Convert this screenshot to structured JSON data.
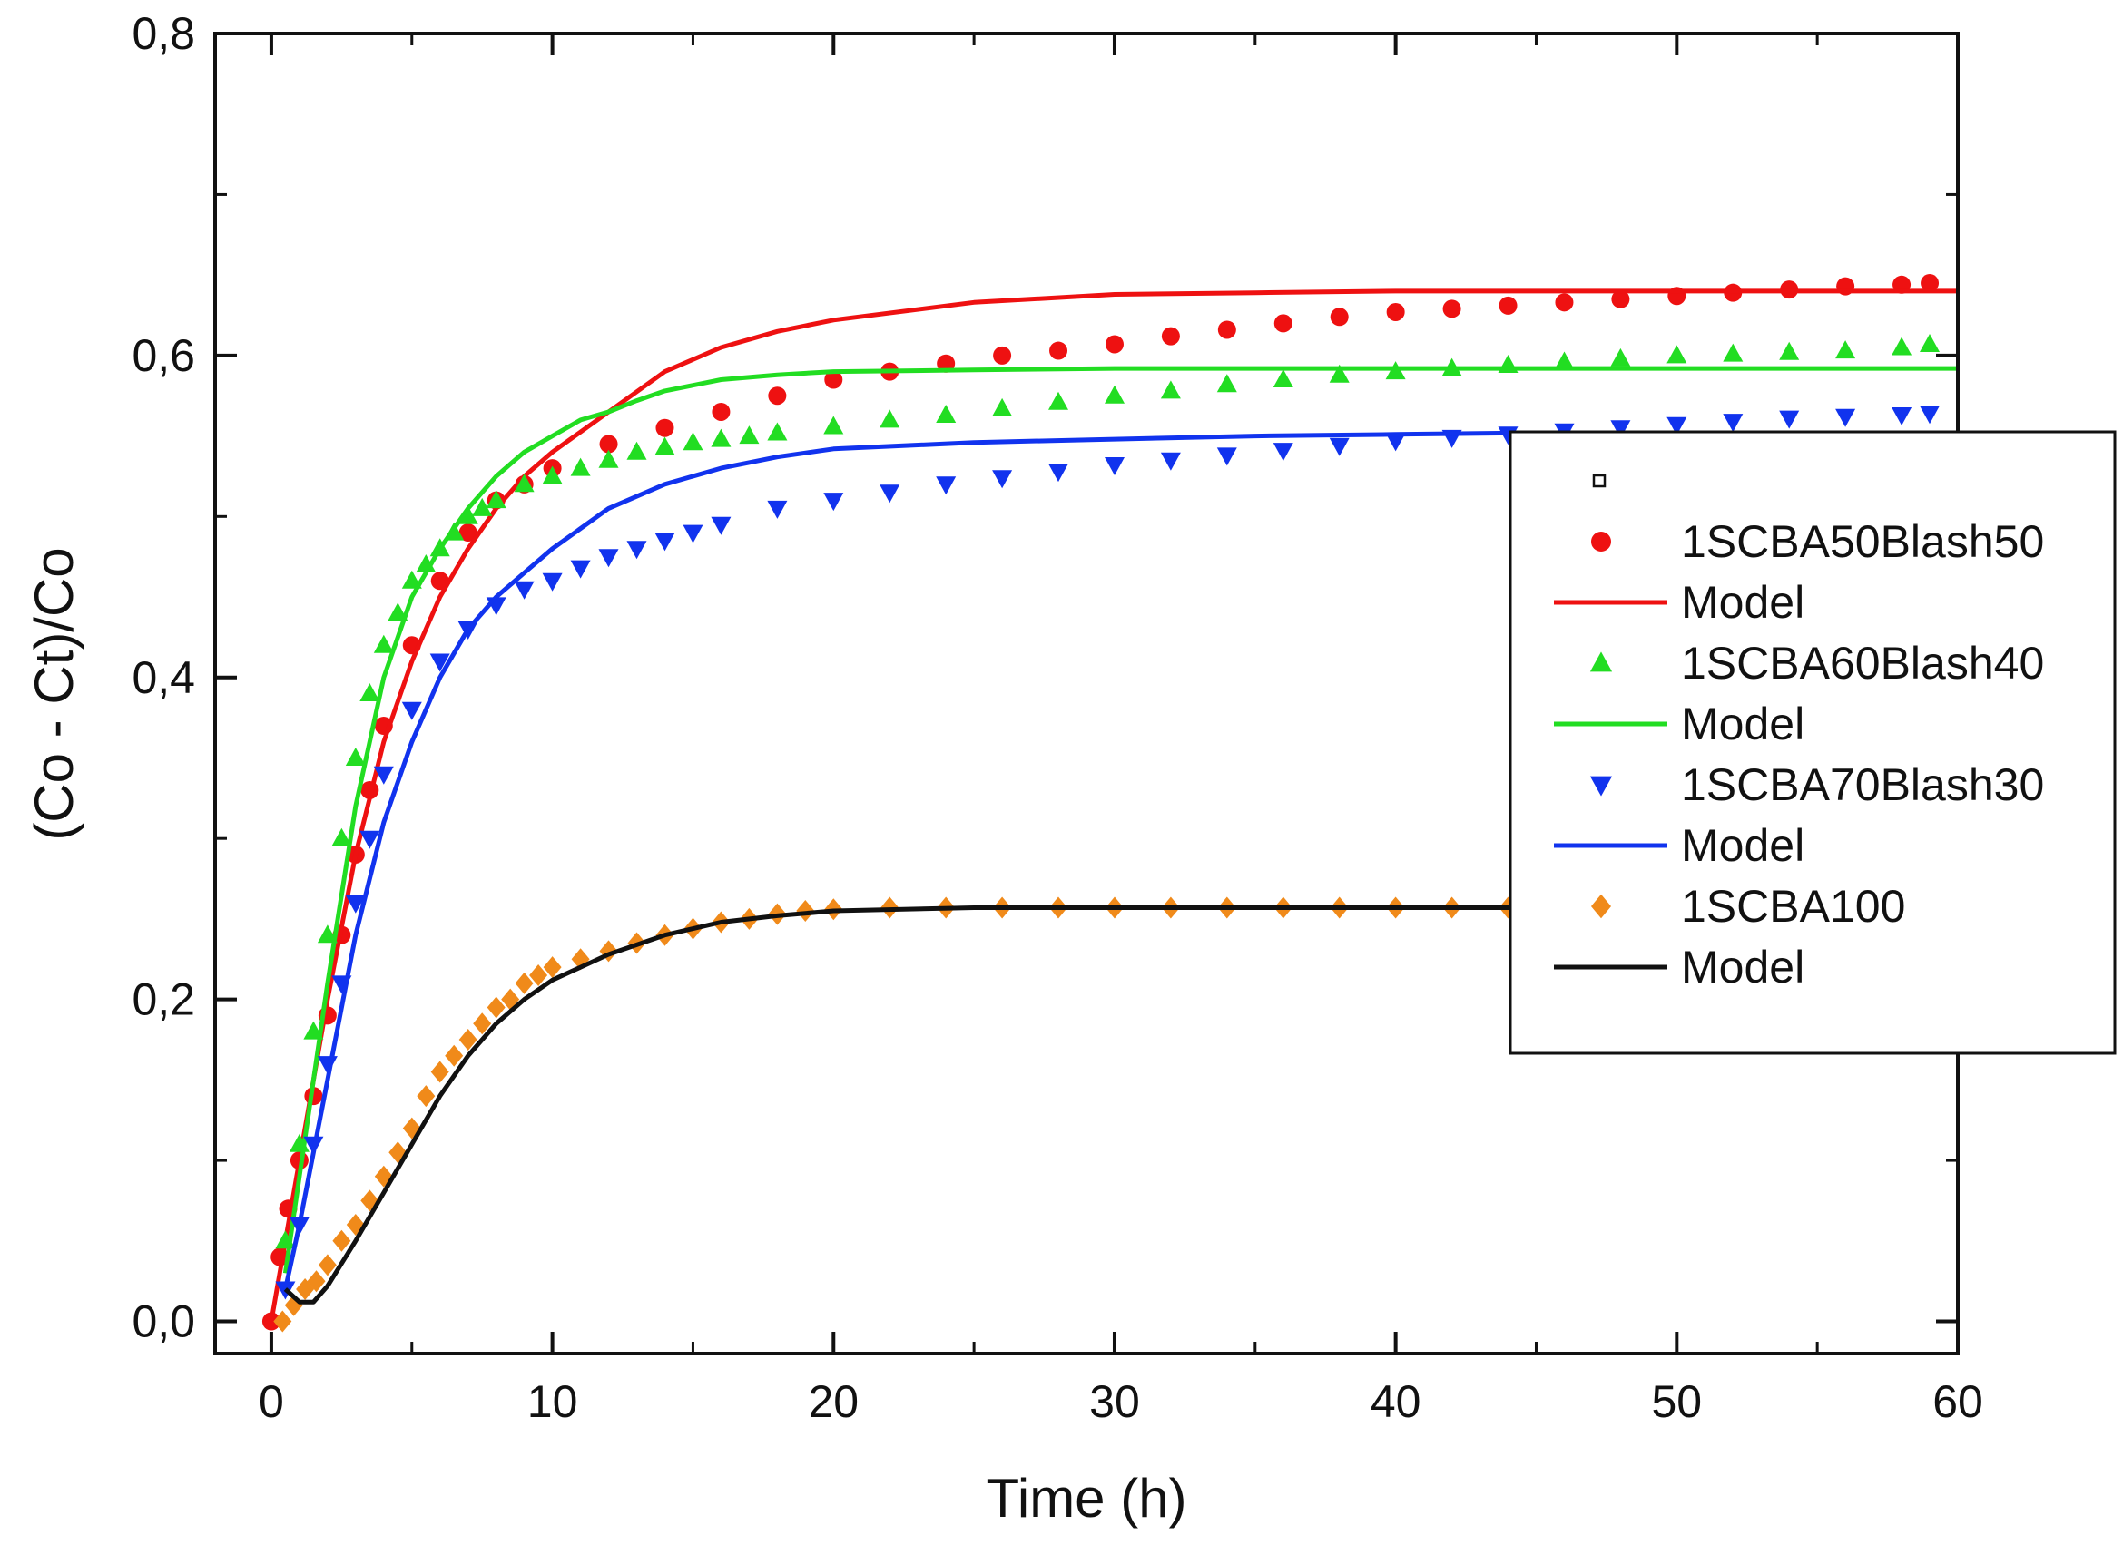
{
  "chart_data": {
    "type": "scatter",
    "title": "",
    "xlabel": "Time (h)",
    "ylabel": "(Co - Ct)/Co",
    "xlim": [
      -2,
      60
    ],
    "ylim": [
      -0.02,
      0.8
    ],
    "xticks": [
      0,
      10,
      20,
      30,
      40,
      50,
      60
    ],
    "xtick_labels": [
      "0",
      "10",
      "20",
      "30",
      "40",
      "50",
      "60"
    ],
    "yticks": [
      0.0,
      0.2,
      0.4,
      0.6,
      0.8
    ],
    "ytick_labels": [
      "0,0",
      "0,2",
      "0,4",
      "0,6",
      "0,8"
    ],
    "legend_position": "right",
    "legend_entries": [
      "",
      "1SCBA50Blash50",
      "Model",
      "1SCBA60Blash40",
      "Model",
      "1SCBA70Blash30",
      "Model",
      "1SCBA100",
      "Model"
    ],
    "series": [
      {
        "name": "1SCBA50Blash50",
        "kind": "points",
        "marker": "circle",
        "color": "#ee1111",
        "x": [
          0,
          0.3,
          0.6,
          1,
          1.5,
          2,
          2.5,
          3,
          3.5,
          4,
          5,
          6,
          7,
          8,
          9,
          10,
          12,
          14,
          16,
          18,
          20,
          22,
          24,
          26,
          28,
          30,
          32,
          34,
          36,
          38,
          40,
          42,
          44,
          46,
          48,
          50,
          52,
          54,
          56,
          58,
          59
        ],
        "y": [
          0,
          0.04,
          0.07,
          0.1,
          0.14,
          0.19,
          0.24,
          0.29,
          0.33,
          0.37,
          0.42,
          0.46,
          0.49,
          0.51,
          0.52,
          0.53,
          0.545,
          0.555,
          0.565,
          0.575,
          0.585,
          0.59,
          0.595,
          0.6,
          0.603,
          0.607,
          0.612,
          0.616,
          0.62,
          0.624,
          0.627,
          0.629,
          0.631,
          0.633,
          0.635,
          0.637,
          0.639,
          0.641,
          0.643,
          0.644,
          0.645
        ]
      },
      {
        "name": "Model",
        "kind": "line",
        "color": "#ee1111",
        "x": [
          0,
          1,
          2,
          3,
          4,
          5,
          6,
          7,
          8,
          9,
          10,
          12,
          14,
          16,
          18,
          20,
          25,
          30,
          35,
          40,
          45,
          50,
          55,
          60
        ],
        "y": [
          0.0,
          0.1,
          0.2,
          0.29,
          0.36,
          0.41,
          0.45,
          0.48,
          0.505,
          0.525,
          0.54,
          0.565,
          0.59,
          0.605,
          0.615,
          0.622,
          0.633,
          0.638,
          0.639,
          0.64,
          0.64,
          0.64,
          0.64,
          0.64
        ]
      },
      {
        "name": "1SCBA60Blash40",
        "kind": "points",
        "marker": "triangle-up",
        "color": "#22dd22",
        "x": [
          0.5,
          1,
          1.5,
          2,
          2.5,
          3,
          3.5,
          4,
          4.5,
          5,
          5.5,
          6,
          6.5,
          7,
          7.5,
          8,
          9,
          10,
          11,
          12,
          13,
          14,
          15,
          16,
          17,
          18,
          20,
          22,
          24,
          26,
          28,
          30,
          32,
          34,
          36,
          38,
          40,
          42,
          44,
          46,
          48,
          50,
          52,
          54,
          56,
          58,
          59
        ],
        "y": [
          0.05,
          0.11,
          0.18,
          0.24,
          0.3,
          0.35,
          0.39,
          0.42,
          0.44,
          0.46,
          0.47,
          0.48,
          0.49,
          0.5,
          0.505,
          0.51,
          0.52,
          0.525,
          0.53,
          0.535,
          0.54,
          0.543,
          0.546,
          0.548,
          0.55,
          0.552,
          0.556,
          0.56,
          0.563,
          0.567,
          0.571,
          0.575,
          0.578,
          0.582,
          0.585,
          0.588,
          0.59,
          0.592,
          0.594,
          0.596,
          0.598,
          0.6,
          0.601,
          0.602,
          0.603,
          0.605,
          0.607
        ]
      },
      {
        "name": "Model",
        "kind": "line",
        "color": "#22dd22",
        "x": [
          0.5,
          1,
          2,
          3,
          4,
          5,
          6,
          7,
          8,
          9,
          10,
          11,
          12,
          13,
          14,
          16,
          18,
          20,
          25,
          30,
          40,
          50,
          60
        ],
        "y": [
          0.03,
          0.09,
          0.21,
          0.32,
          0.4,
          0.45,
          0.48,
          0.505,
          0.525,
          0.54,
          0.55,
          0.56,
          0.565,
          0.572,
          0.578,
          0.585,
          0.588,
          0.59,
          0.591,
          0.592,
          0.592,
          0.592,
          0.592
        ]
      },
      {
        "name": "1SCBA70Blash30",
        "kind": "points",
        "marker": "triangle-down",
        "color": "#1133ee",
        "x": [
          0.5,
          1,
          1.5,
          2,
          2.5,
          3,
          3.5,
          4,
          5,
          6,
          7,
          8,
          9,
          10,
          11,
          12,
          13,
          14,
          15,
          16,
          18,
          20,
          22,
          24,
          26,
          28,
          30,
          32,
          34,
          36,
          38,
          40,
          42,
          44,
          46,
          48,
          50,
          52,
          54,
          56,
          58,
          59
        ],
        "y": [
          0.02,
          0.06,
          0.11,
          0.16,
          0.21,
          0.26,
          0.3,
          0.34,
          0.38,
          0.41,
          0.43,
          0.445,
          0.455,
          0.46,
          0.468,
          0.475,
          0.48,
          0.485,
          0.49,
          0.495,
          0.505,
          0.51,
          0.515,
          0.52,
          0.524,
          0.528,
          0.532,
          0.535,
          0.538,
          0.541,
          0.544,
          0.547,
          0.549,
          0.551,
          0.553,
          0.555,
          0.557,
          0.559,
          0.561,
          0.562,
          0.563,
          0.564
        ]
      },
      {
        "name": "Model",
        "kind": "line",
        "color": "#1133ee",
        "x": [
          0.5,
          1,
          2,
          3,
          4,
          5,
          6,
          7,
          8,
          9,
          10,
          12,
          14,
          16,
          18,
          20,
          25,
          30,
          35,
          40,
          45,
          50,
          55,
          60
        ],
        "y": [
          0.02,
          0.06,
          0.15,
          0.24,
          0.31,
          0.36,
          0.4,
          0.43,
          0.45,
          0.465,
          0.48,
          0.505,
          0.52,
          0.53,
          0.537,
          0.542,
          0.546,
          0.548,
          0.55,
          0.551,
          0.552,
          0.552,
          0.552,
          0.552
        ]
      },
      {
        "name": "1SCBA100",
        "kind": "points",
        "marker": "diamond",
        "color": "#f08a1a",
        "x": [
          0.4,
          0.8,
          1.2,
          1.6,
          2,
          2.5,
          3,
          3.5,
          4,
          4.5,
          5,
          5.5,
          6,
          6.5,
          7,
          7.5,
          8,
          8.5,
          9,
          9.5,
          10,
          11,
          12,
          13,
          14,
          15,
          16,
          17,
          18,
          19,
          20,
          22,
          24,
          26,
          28,
          30,
          32,
          34,
          36,
          38,
          40,
          42,
          44
        ],
        "y": [
          0.0,
          0.01,
          0.02,
          0.025,
          0.035,
          0.05,
          0.06,
          0.075,
          0.09,
          0.105,
          0.12,
          0.14,
          0.155,
          0.165,
          0.175,
          0.185,
          0.195,
          0.2,
          0.21,
          0.215,
          0.22,
          0.225,
          0.23,
          0.235,
          0.24,
          0.244,
          0.248,
          0.25,
          0.253,
          0.255,
          0.256,
          0.257,
          0.257,
          0.257,
          0.257,
          0.257,
          0.257,
          0.257,
          0.257,
          0.257,
          0.257,
          0.257,
          0.257
        ]
      },
      {
        "name": "Model",
        "kind": "line",
        "color": "#111111",
        "x": [
          0.5,
          1,
          1.5,
          2,
          3,
          4,
          5,
          6,
          7,
          8,
          9,
          10,
          12,
          14,
          16,
          18,
          20,
          25,
          30,
          35,
          40,
          45
        ],
        "y": [
          0.02,
          0.012,
          0.012,
          0.022,
          0.05,
          0.08,
          0.11,
          0.14,
          0.165,
          0.185,
          0.2,
          0.212,
          0.228,
          0.24,
          0.248,
          0.252,
          0.255,
          0.257,
          0.257,
          0.257,
          0.257,
          0.257
        ]
      }
    ]
  }
}
